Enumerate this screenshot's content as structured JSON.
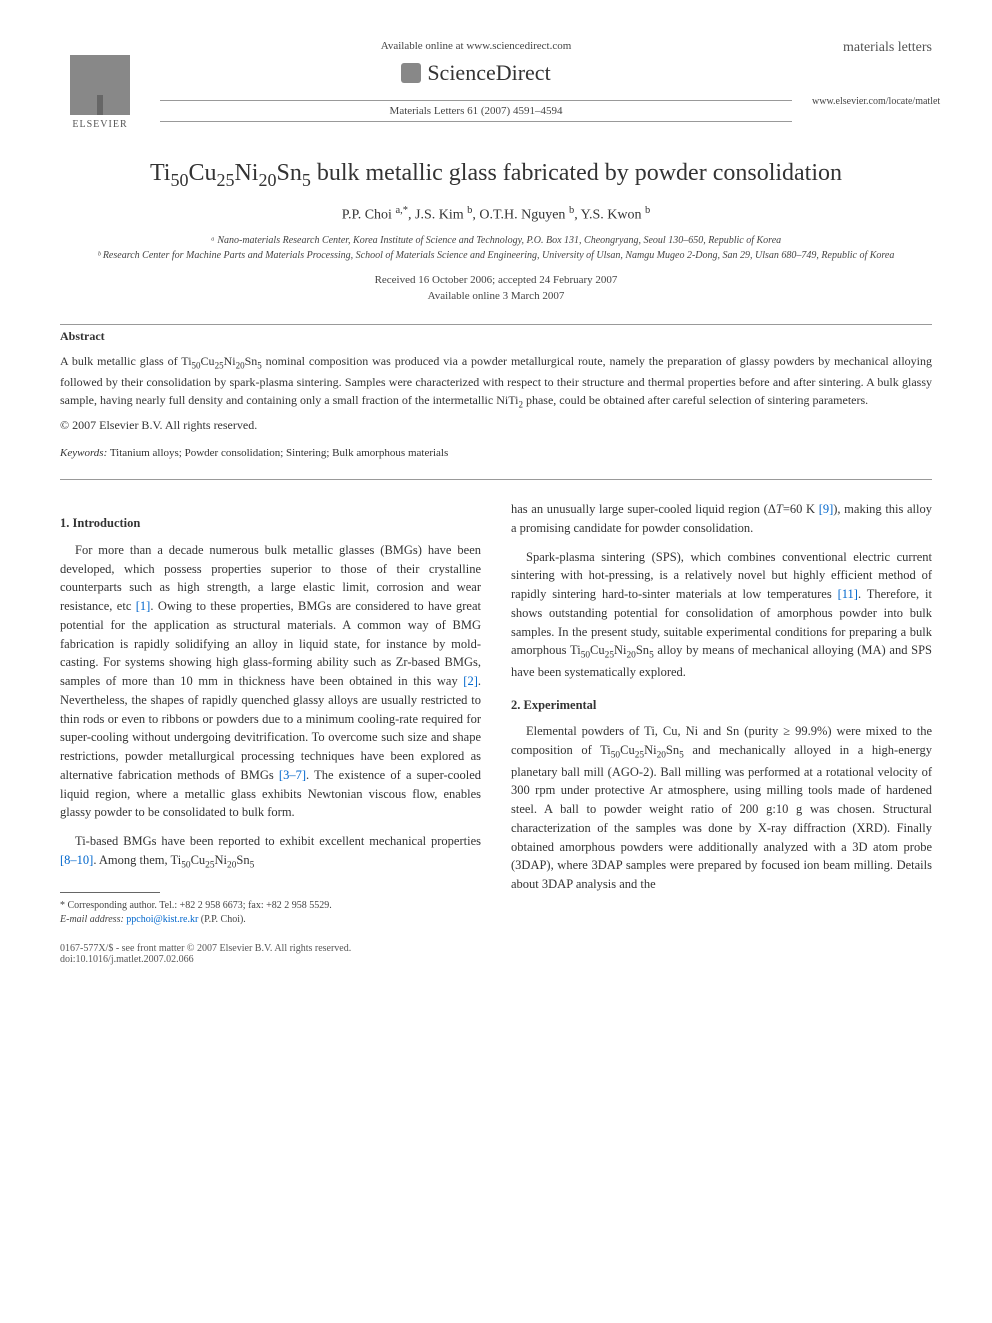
{
  "header": {
    "publisher": "ELSEVIER",
    "availability": "Available online at www.sciencedirect.com",
    "platform": "ScienceDirect",
    "citation": "Materials Letters 61 (2007) 4591–4594",
    "journal_title": "materials letters",
    "journal_url": "www.elsevier.com/locate/matlet"
  },
  "article": {
    "title_html": "Ti<sub>50</sub>Cu<sub>25</sub>Ni<sub>20</sub>Sn<sub>5</sub> bulk metallic glass fabricated by powder consolidation",
    "authors_html": "P.P. Choi <sup>a,*</sup>, J.S. Kim <sup>b</sup>, O.T.H. Nguyen <sup>b</sup>, Y.S. Kwon <sup>b</sup>",
    "affiliations": [
      "ᵃ Nano-materials Research Center, Korea Institute of Science and Technology, P.O. Box 131, Cheongryang, Seoul 130–650, Republic of Korea",
      "ᵇ Research Center for Machine Parts and Materials Processing, School of Materials Science and Engineering, University of Ulsan, Namgu Mugeo 2-Dong, San 29, Ulsan 680–749, Republic of Korea"
    ],
    "dates": {
      "received_accepted": "Received 16 October 2006; accepted 24 February 2007",
      "online": "Available online 3 March 2007"
    }
  },
  "abstract": {
    "heading": "Abstract",
    "text_html": "A bulk metallic glass of Ti<sub>50</sub>Cu<sub>25</sub>Ni<sub>20</sub>Sn<sub>5</sub> nominal composition was produced via a powder metallurgical route, namely the preparation of glassy powders by mechanical alloying followed by their consolidation by spark-plasma sintering. Samples were characterized with respect to their structure and thermal properties before and after sintering. A bulk glassy sample, having nearly full density and containing only a small fraction of the intermetallic NiTi<sub>2</sub> phase, could be obtained after careful selection of sintering parameters.",
    "copyright": "© 2007 Elsevier B.V. All rights reserved.",
    "keywords_label": "Keywords:",
    "keywords": "Titanium alloys; Powder consolidation; Sintering; Bulk amorphous materials"
  },
  "sections": {
    "intro_heading": "1. Introduction",
    "exp_heading": "2. Experimental",
    "intro_p1_html": "For more than a decade numerous bulk metallic glasses (BMGs) have been developed, which possess properties superior to those of their crystalline counterparts such as high strength, a large elastic limit, corrosion and wear resistance, etc <span class=\"ref-link\">[1]</span>. Owing to these properties, BMGs are considered to have great potential for the application as structural materials. A common way of BMG fabrication is rapidly solidifying an alloy in liquid state, for instance by mold-casting. For systems showing high glass-forming ability such as Zr-based BMGs, samples of more than 10 mm in thickness have been obtained in this way <span class=\"ref-link\">[2]</span>. Nevertheless, the shapes of rapidly quenched glassy alloys are usually restricted to thin rods or even to ribbons or powders due to a minimum cooling-rate required for super-cooling without undergoing devitrification. To overcome such size and shape restrictions, powder metallurgical processing techniques have been explored as alternative fabrication methods of BMGs <span class=\"ref-link\">[3–7]</span>. The existence of a super-cooled liquid region, where a metallic glass exhibits Newtonian viscous flow, enables glassy powder to be consolidated to bulk form.",
    "intro_p2_html": "Ti-based BMGs have been reported to exhibit excellent mechanical properties <span class=\"ref-link\">[8–10]</span>. Among them, Ti<sub>50</sub>Cu<sub>25</sub>Ni<sub>20</sub>Sn<sub>5</sub>",
    "col2_p1_html": "has an unusually large super-cooled liquid region (Δ<i>T</i>=60 K <span class=\"ref-link\">[9]</span>), making this alloy a promising candidate for powder consolidation.",
    "col2_p2_html": "Spark-plasma sintering (SPS), which combines conventional electric current sintering with hot-pressing, is a relatively novel but highly efficient method of rapidly sintering hard-to-sinter materials at low temperatures <span class=\"ref-link\">[11]</span>. Therefore, it shows outstanding potential for consolidation of amorphous powder into bulk samples. In the present study, suitable experimental conditions for preparing a bulk amorphous Ti<sub>50</sub>Cu<sub>25</sub>Ni<sub>20</sub>Sn<sub>5</sub> alloy by means of mechanical alloying (MA) and SPS have been systematically explored.",
    "exp_p1_html": "Elemental powders of Ti, Cu, Ni and Sn (purity ≥ 99.9%) were mixed to the composition of Ti<sub>50</sub>Cu<sub>25</sub>Ni<sub>20</sub>Sn<sub>5</sub> and mechanically alloyed in a high-energy planetary ball mill (AGO-2). Ball milling was performed at a rotational velocity of 300 rpm under protective Ar atmosphere, using milling tools made of hardened steel. A ball to powder weight ratio of 200 g:10 g was chosen. Structural characterization of the samples was done by X-ray diffraction (XRD). Finally obtained amorphous powders were additionally analyzed with a 3D atom probe (3DAP), where 3DAP samples were prepared by focused ion beam milling. Details about 3DAP analysis and the"
  },
  "footnote": {
    "corresponding": "* Corresponding author. Tel.: +82 2 958 6673; fax: +82 2 958 5529.",
    "email_label": "E-mail address:",
    "email": "ppchoi@kist.re.kr",
    "email_attrib": "(P.P. Choi)."
  },
  "footer": {
    "left_line1": "0167-577X/$ - see front matter © 2007 Elsevier B.V. All rights reserved.",
    "left_line2": "doi:10.1016/j.matlet.2007.02.066"
  },
  "colors": {
    "text": "#333333",
    "link": "#0066cc",
    "muted": "#444444",
    "rule": "#999999"
  }
}
